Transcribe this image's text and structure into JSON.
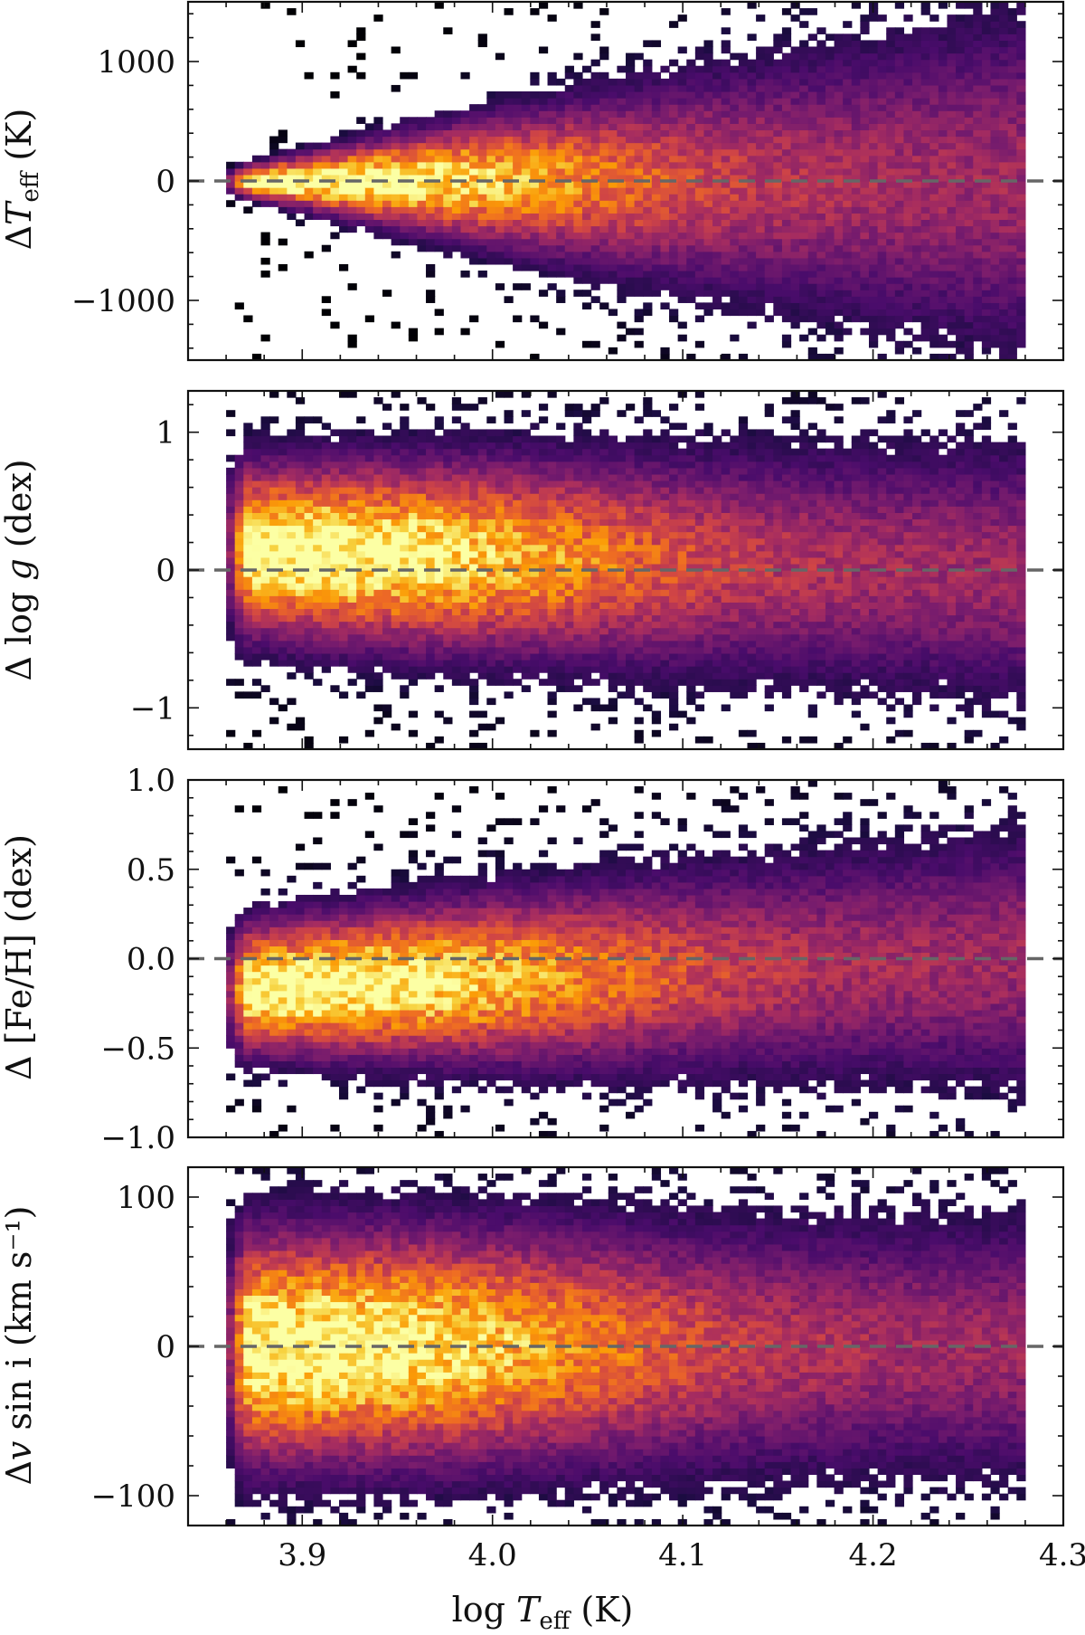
{
  "figure": {
    "colormap": [
      "#000004",
      "#1b0c41",
      "#4a0c6b",
      "#781c6d",
      "#a52c60",
      "#cf4446",
      "#ed6925",
      "#fb9b06",
      "#f7d13d",
      "#fcffa4"
    ],
    "reference_line_color": "#666666"
  },
  "chart_data": [
    {
      "type": "heatmap",
      "ylabel": "ΔT_eff (K)",
      "ylabel_parts": {
        "pre": "Δ",
        "main": "T",
        "sub": "eff",
        "post": " (K)"
      },
      "xlim": [
        3.84,
        4.3
      ],
      "ylim": [
        -1500,
        1500
      ],
      "yticks": [
        -1000,
        0,
        1000
      ],
      "ytick_labels": [
        "−1000",
        "0",
        "1000"
      ],
      "reference_line_y": 0,
      "density_model": {
        "x_range": [
          3.86,
          4.28
        ],
        "center": [
          0,
          0
        ],
        "spread": [
          45,
          700
        ],
        "peak_x": 3.9
      }
    },
    {
      "type": "heatmap",
      "ylabel": "Δ log g (dex)",
      "ylabel_parts": {
        "pre": "Δ log ",
        "main": "g",
        "sub": "",
        "post": " (dex)"
      },
      "xlim": [
        3.84,
        4.3
      ],
      "ylim": [
        -1.3,
        1.3
      ],
      "yticks": [
        -1,
        0,
        1
      ],
      "ytick_labels": [
        "−1",
        "0",
        "1"
      ],
      "reference_line_y": 0,
      "density_model": {
        "x_range": [
          3.86,
          4.28
        ],
        "center": [
          0.15,
          0.0
        ],
        "spread": [
          0.3,
          0.45
        ],
        "peak_x": 3.9
      }
    },
    {
      "type": "heatmap",
      "ylabel": "Δ [Fe/H] (dex)",
      "ylabel_parts": {
        "pre": "Δ [Fe/H]",
        "main": "",
        "sub": "",
        "post": " (dex)"
      },
      "xlim": [
        3.84,
        4.3
      ],
      "ylim": [
        -1.0,
        1.0
      ],
      "yticks": [
        -1.0,
        -0.5,
        0.0,
        0.5,
        1.0
      ],
      "ytick_labels": [
        "−1.0",
        "−0.5",
        "0.0",
        "0.5",
        "1.0"
      ],
      "reference_line_y": 0,
      "density_model": {
        "x_range": [
          3.86,
          4.28
        ],
        "center": [
          -0.17,
          0.0
        ],
        "spread": [
          0.17,
          0.35
        ],
        "peak_x": 3.9
      }
    },
    {
      "type": "heatmap",
      "ylabel": "Δv sin i (km s⁻¹)",
      "ylabel_parts": {
        "pre": "Δ",
        "main": "v",
        "sub": "",
        "post": " sin i (km s⁻¹)"
      },
      "xlabel": "log T_eff (K)",
      "xlabel_parts": {
        "pre": "log ",
        "main": "T",
        "sub": "eff",
        "post": " (K)"
      },
      "xlim": [
        3.84,
        4.3
      ],
      "xticks": [
        3.9,
        4.0,
        4.1,
        4.2,
        4.3
      ],
      "xtick_labels": [
        "3.9",
        "4.0",
        "4.1",
        "4.2",
        "4.3"
      ],
      "ylim": [
        -120,
        120
      ],
      "yticks": [
        -100,
        0,
        100
      ],
      "ytick_labels": [
        "−100",
        "0",
        "100"
      ],
      "reference_line_y": 0,
      "density_model": {
        "x_range": [
          3.86,
          4.28
        ],
        "center": [
          0,
          0
        ],
        "spread": [
          38,
          42
        ],
        "peak_x": 3.9
      }
    }
  ]
}
